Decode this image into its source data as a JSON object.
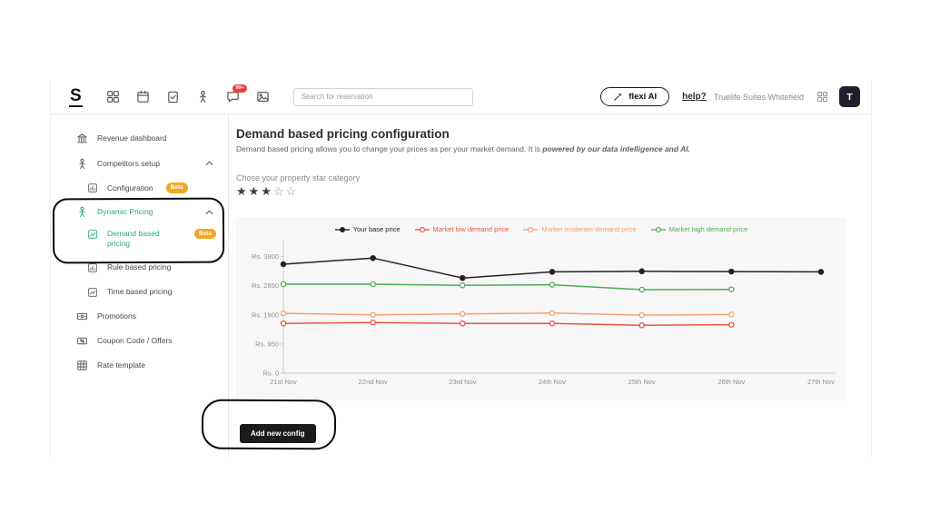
{
  "topbar": {
    "logo": "S",
    "search": {
      "placeholder": "Search for reservation"
    },
    "chat_badge": "99+",
    "flexi_ai": "flexi AI",
    "help": "help?",
    "property": "Truelife Suites Whitefield",
    "avatar": "T"
  },
  "sidebar": {
    "items": [
      {
        "label": "Revenue dashboard"
      },
      {
        "label": "Competitors setup"
      },
      {
        "label": "Configuration",
        "badge": "Beta"
      },
      {
        "label": "Dynamic Pricing"
      },
      {
        "label": "Demand based pricing",
        "badge": "Beta"
      },
      {
        "label": "Rule based pricing"
      },
      {
        "label": "Time based pricing"
      },
      {
        "label": "Promotions"
      },
      {
        "label": "Coupon Code / Offers"
      },
      {
        "label": "Rate template"
      }
    ]
  },
  "main": {
    "title": "Demand based pricing configuration",
    "subtitle": "Demand based pricing allows you to change your prices as per your market demand. It is ",
    "subtitle_emphasis": "powered by our data intelligence and AI.",
    "star_section_label": "Chose your property star category",
    "stars_filled": "★★★",
    "stars_empty": "☆☆",
    "add_config_button": "Add new config"
  },
  "colors": {
    "accent_green": "#2aa87e",
    "beta_badge": "#f5a623",
    "notification_badge": "#e8413c",
    "dark_button": "#1b1b1b"
  },
  "chart_data": {
    "type": "line",
    "x_labels": [
      "21st Nov",
      "22nd Nov",
      "23rd Nov",
      "24th Nov",
      "25th Nov",
      "26th Nov",
      "27th Nov"
    ],
    "y_ticks": [
      {
        "label": "Rs. 3800",
        "value": 3800
      },
      {
        "label": "Rs. 2850",
        "value": 2850
      },
      {
        "label": "Rs. 1900",
        "value": 1900
      },
      {
        "label": "Rs. 950",
        "value": 950
      },
      {
        "label": "Rs. 0",
        "value": 0
      }
    ],
    "ylim": [
      0,
      4200
    ],
    "grid": false,
    "legend_position": "top",
    "series": [
      {
        "name": "Your base price",
        "color": "#222222",
        "filled": true,
        "values": [
          3550,
          3750,
          3100,
          3300,
          3320,
          3310,
          3300
        ]
      },
      {
        "name": "Market low demand price",
        "color": "#e8553f",
        "filled": false,
        "values": [
          1620,
          1650,
          1620,
          1620,
          1560,
          1580,
          null
        ]
      },
      {
        "name": "Market moderate demand price",
        "color": "#f2a171",
        "filled": false,
        "values": [
          1950,
          1900,
          1930,
          1960,
          1890,
          1910,
          null
        ]
      },
      {
        "name": "Market high demand price",
        "color": "#4caf50",
        "filled": false,
        "values": [
          2900,
          2900,
          2860,
          2880,
          2720,
          2730,
          null
        ]
      }
    ]
  }
}
